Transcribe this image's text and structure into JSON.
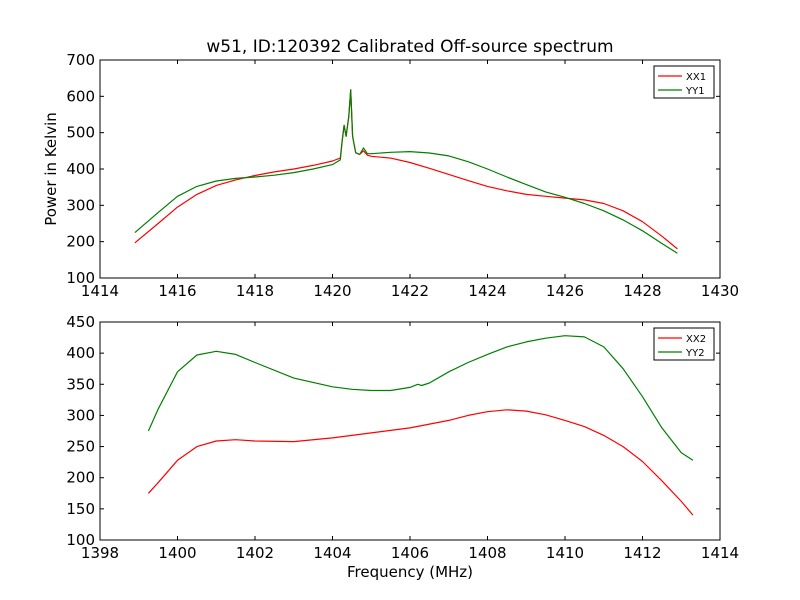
{
  "chart_data": [
    {
      "type": "line",
      "title": "w51, ID:120392 Calibrated Off-source spectrum",
      "xlabel": "",
      "ylabel": "Power in Kelvin",
      "xlim": [
        1414,
        1430
      ],
      "ylim": [
        100,
        700
      ],
      "xticks": [
        "1414",
        "1416",
        "1418",
        "1420",
        "1422",
        "1424",
        "1426",
        "1428",
        "1430"
      ],
      "yticks": [
        "100",
        "200",
        "300",
        "400",
        "500",
        "600",
        "700"
      ],
      "legend_position": "top-right",
      "grid": false,
      "series": [
        {
          "name": "XX1",
          "color": "#ff0000",
          "points": [
            [
              1414.9,
              197
            ],
            [
              1415.5,
              250
            ],
            [
              1416,
              295
            ],
            [
              1416.5,
              330
            ],
            [
              1417,
              355
            ],
            [
              1417.5,
              370
            ],
            [
              1418,
              382
            ],
            [
              1418.5,
              392
            ],
            [
              1419,
              400
            ],
            [
              1419.5,
              410
            ],
            [
              1420,
              422
            ],
            [
              1420.2,
              430
            ],
            [
              1420.25,
              478
            ],
            [
              1420.3,
              520
            ],
            [
              1420.35,
              490
            ],
            [
              1420.42,
              545
            ],
            [
              1420.47,
              618
            ],
            [
              1420.52,
              490
            ],
            [
              1420.6,
              445
            ],
            [
              1420.7,
              440
            ],
            [
              1420.8,
              450
            ],
            [
              1420.9,
              438
            ],
            [
              1421,
              435
            ],
            [
              1421.5,
              430
            ],
            [
              1422,
              418
            ],
            [
              1422.5,
              402
            ],
            [
              1423,
              385
            ],
            [
              1423.5,
              368
            ],
            [
              1424,
              352
            ],
            [
              1424.5,
              340
            ],
            [
              1425,
              330
            ],
            [
              1425.5,
              325
            ],
            [
              1426,
              320
            ],
            [
              1426.5,
              315
            ],
            [
              1427,
              305
            ],
            [
              1427.5,
              285
            ],
            [
              1428,
              255
            ],
            [
              1428.5,
              215
            ],
            [
              1428.9,
              180
            ]
          ]
        },
        {
          "name": "YY1",
          "color": "#008000",
          "points": [
            [
              1414.9,
              225
            ],
            [
              1415.5,
              280
            ],
            [
              1416,
              325
            ],
            [
              1416.5,
              352
            ],
            [
              1417,
              367
            ],
            [
              1417.5,
              374
            ],
            [
              1418,
              378
            ],
            [
              1418.5,
              383
            ],
            [
              1419,
              390
            ],
            [
              1419.5,
              400
            ],
            [
              1420,
              412
            ],
            [
              1420.2,
              425
            ],
            [
              1420.25,
              478
            ],
            [
              1420.3,
              520
            ],
            [
              1420.35,
              490
            ],
            [
              1420.42,
              545
            ],
            [
              1420.47,
              618
            ],
            [
              1420.52,
              490
            ],
            [
              1420.6,
              445
            ],
            [
              1420.7,
              440
            ],
            [
              1420.8,
              458
            ],
            [
              1420.9,
              442
            ],
            [
              1421,
              442
            ],
            [
              1421.5,
              446
            ],
            [
              1422,
              448
            ],
            [
              1422.5,
              444
            ],
            [
              1423,
              436
            ],
            [
              1423.5,
              420
            ],
            [
              1424,
              400
            ],
            [
              1424.5,
              378
            ],
            [
              1425,
              357
            ],
            [
              1425.5,
              337
            ],
            [
              1426,
              322
            ],
            [
              1426.5,
              305
            ],
            [
              1427,
              285
            ],
            [
              1427.5,
              260
            ],
            [
              1428,
              230
            ],
            [
              1428.5,
              195
            ],
            [
              1428.9,
              168
            ]
          ]
        }
      ]
    },
    {
      "type": "line",
      "title": "",
      "xlabel": "Frequency (MHz)",
      "ylabel": "",
      "xlim": [
        1398,
        1414
      ],
      "ylim": [
        100,
        450
      ],
      "xticks": [
        "1398",
        "1400",
        "1402",
        "1404",
        "1406",
        "1408",
        "1410",
        "1412",
        "1414"
      ],
      "yticks": [
        "100",
        "150",
        "200",
        "250",
        "300",
        "350",
        "400",
        "450"
      ],
      "legend_position": "top-right",
      "grid": false,
      "series": [
        {
          "name": "XX2",
          "color": "#ff0000",
          "points": [
            [
              1399.25,
              175
            ],
            [
              1399.5,
              192
            ],
            [
              1400,
              228
            ],
            [
              1400.5,
              250
            ],
            [
              1401,
              259
            ],
            [
              1401.5,
              261
            ],
            [
              1402,
              259
            ],
            [
              1403,
              258
            ],
            [
              1404,
              264
            ],
            [
              1404.5,
              268
            ],
            [
              1405,
              272
            ],
            [
              1406,
              280
            ],
            [
              1407,
              292
            ],
            [
              1407.5,
              300
            ],
            [
              1408,
              306
            ],
            [
              1408.5,
              309
            ],
            [
              1409,
              307
            ],
            [
              1409.5,
              301
            ],
            [
              1410,
              292
            ],
            [
              1410.5,
              282
            ],
            [
              1411,
              268
            ],
            [
              1411.5,
              250
            ],
            [
              1412,
              226
            ],
            [
              1412.5,
              195
            ],
            [
              1413,
              162
            ],
            [
              1413.3,
              140
            ]
          ]
        },
        {
          "name": "YY2",
          "color": "#008000",
          "points": [
            [
              1399.25,
              275
            ],
            [
              1399.5,
              310
            ],
            [
              1400,
              370
            ],
            [
              1400.5,
              397
            ],
            [
              1401,
              403
            ],
            [
              1401.5,
              398
            ],
            [
              1402,
              385
            ],
            [
              1403,
              360
            ],
            [
              1404,
              346
            ],
            [
              1404.5,
              342
            ],
            [
              1405,
              340
            ],
            [
              1405.5,
              340
            ],
            [
              1406,
              345
            ],
            [
              1406.2,
              350
            ],
            [
              1406.3,
              348
            ],
            [
              1406.5,
              352
            ],
            [
              1407,
              370
            ],
            [
              1407.5,
              385
            ],
            [
              1408,
              398
            ],
            [
              1408.5,
              410
            ],
            [
              1409,
              418
            ],
            [
              1409.5,
              424
            ],
            [
              1410,
              428
            ],
            [
              1410.5,
              426
            ],
            [
              1411,
              410
            ],
            [
              1411.5,
              375
            ],
            [
              1412,
              330
            ],
            [
              1412.5,
              280
            ],
            [
              1413,
              240
            ],
            [
              1413.3,
              228
            ]
          ]
        }
      ]
    }
  ]
}
